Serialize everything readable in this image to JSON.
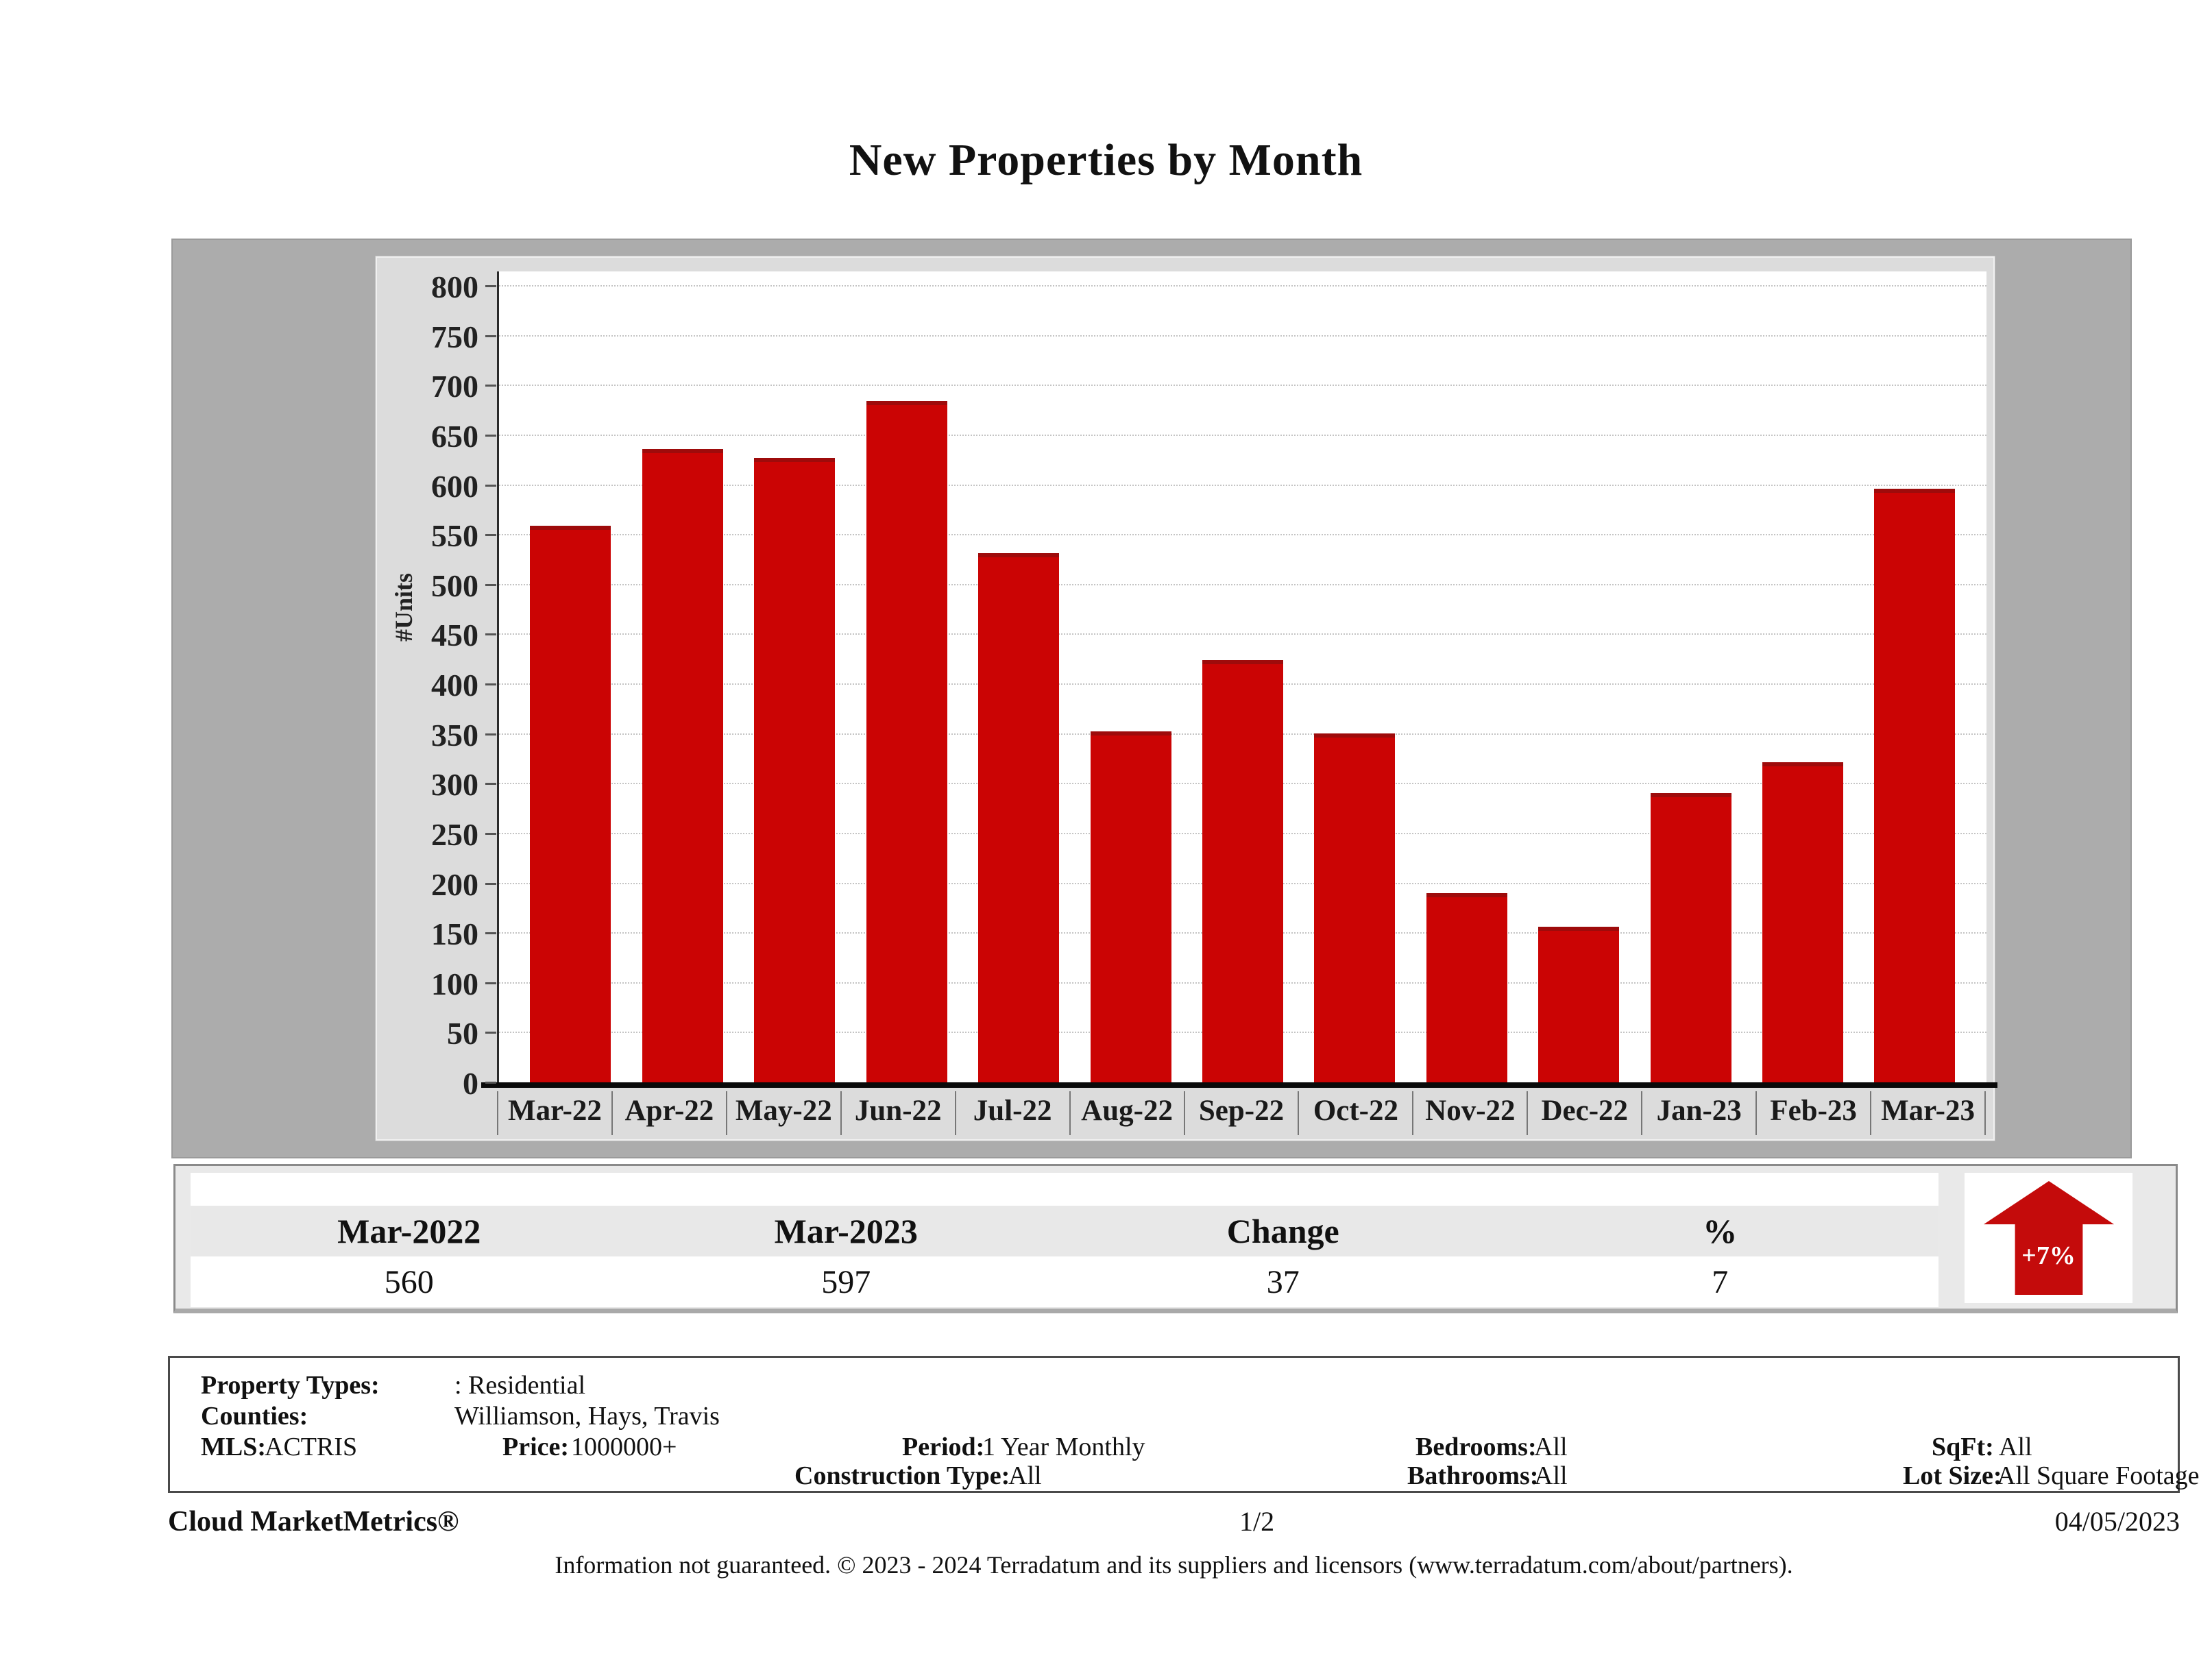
{
  "page": {
    "title": "New Properties by Month"
  },
  "chart_data": {
    "type": "bar",
    "categories": [
      "Mar-22",
      "Apr-22",
      "May-22",
      "Jun-22",
      "Jul-22",
      "Aug-22",
      "Sep-22",
      "Oct-22",
      "Nov-22",
      "Dec-22",
      "Jan-23",
      "Feb-23",
      "Mar-23"
    ],
    "values": [
      560,
      637,
      628,
      685,
      532,
      353,
      425,
      351,
      191,
      157,
      291,
      322,
      597
    ],
    "title": "New Properties by Month",
    "xlabel": "",
    "ylabel": "#Units",
    "ylim": [
      0,
      800
    ],
    "ytick_step": 50,
    "grid": true,
    "legend": "none",
    "bar_color": "#cb0404"
  },
  "summary_table": {
    "headers": [
      "Mar-2022",
      "Mar-2023",
      "Change",
      "%"
    ],
    "values": [
      "560",
      "597",
      "37",
      "7"
    ]
  },
  "change_indicator": {
    "label": "+7%",
    "direction": "up",
    "arrow_color": "#c40b0b"
  },
  "criteria": {
    "property_types_label": "Property Types:",
    "property_types_value": ": Residential",
    "counties_label": "Counties:",
    "counties_value": "Williamson, Hays, Travis",
    "mls_label": "MLS:",
    "mls_value": "ACTRIS",
    "price_label": "Price:",
    "price_value": "1000000+",
    "period_label": "Period:",
    "period_value": "1 Year Monthly",
    "bedrooms_label": "Bedrooms:",
    "bedrooms_value": "All",
    "bathrooms_label": "Bathrooms:",
    "bathrooms_value": "All",
    "construction_label": "Construction Type:",
    "construction_value": "All",
    "sqft_label": "SqFt:",
    "sqft_value": "All",
    "lotsize_label": "Lot Size:",
    "lotsize_value": "All Square Footage"
  },
  "footer": {
    "brand": "Cloud MarketMetrics®",
    "page_number": "1/2",
    "date": "04/05/2023",
    "disclaimer": "Information not guaranteed. © 2023 - 2024 Terradatum and its suppliers and licensors (www.terradatum.com/about/partners)."
  }
}
